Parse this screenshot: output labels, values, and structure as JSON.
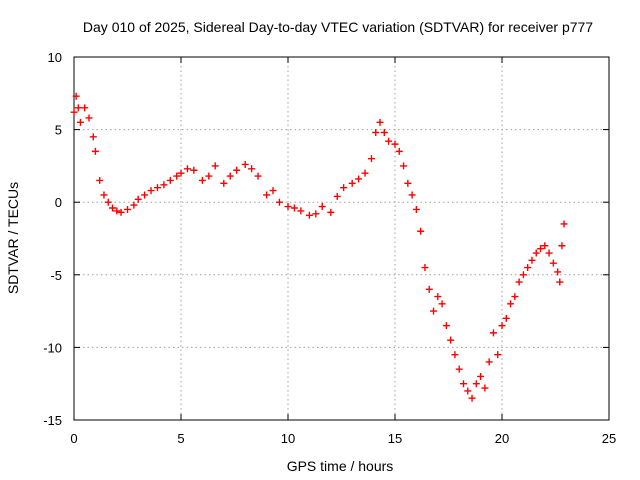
{
  "chart_data": {
    "type": "scatter",
    "title": "Day 010 of 2025, Sidereal Day-to-day VTEC variation (SDTVAR) for receiver p777",
    "xlabel": "GPS time / hours",
    "ylabel": "SDTVAR / TECUs",
    "xlim": [
      0,
      25
    ],
    "ylim": [
      -15,
      10
    ],
    "xticks": [
      0,
      5,
      10,
      15,
      20,
      25
    ],
    "yticks": [
      -15,
      -10,
      -5,
      0,
      5,
      10
    ],
    "xtick_labels": [
      "0",
      "5",
      "10",
      "15",
      "20",
      "25"
    ],
    "ytick_labels": [
      "-15",
      "-10",
      "-5",
      "0",
      "5",
      "10"
    ],
    "grid": true,
    "marker": "+",
    "series": [
      {
        "name": "SDTVAR",
        "color": "#ff0000",
        "x": [
          0.0,
          0.1,
          0.2,
          0.3,
          0.5,
          0.7,
          0.9,
          1.0,
          1.2,
          1.4,
          1.6,
          1.8,
          2.0,
          2.2,
          2.5,
          2.8,
          3.0,
          3.3,
          3.6,
          3.9,
          4.2,
          4.5,
          4.8,
          5.0,
          5.3,
          5.6,
          6.0,
          6.3,
          6.6,
          7.0,
          7.3,
          7.6,
          8.0,
          8.3,
          8.6,
          9.0,
          9.3,
          9.6,
          10.0,
          10.3,
          10.6,
          11.0,
          11.3,
          11.6,
          12.0,
          12.3,
          12.6,
          13.0,
          13.3,
          13.6,
          13.9,
          14.1,
          14.3,
          14.5,
          14.7,
          15.0,
          15.2,
          15.4,
          15.6,
          15.8,
          16.0,
          16.2,
          16.4,
          16.6,
          16.8,
          17.0,
          17.2,
          17.4,
          17.6,
          17.8,
          18.0,
          18.2,
          18.4,
          18.6,
          18.8,
          19.0,
          19.2,
          19.4,
          19.6,
          19.8,
          20.0,
          20.2,
          20.4,
          20.6,
          20.8,
          21.0,
          21.2,
          21.4,
          21.6,
          21.8,
          22.0,
          22.2,
          22.4,
          22.6,
          22.7,
          22.8,
          22.9
        ],
        "y": [
          6.2,
          7.3,
          6.5,
          5.5,
          6.5,
          5.8,
          4.5,
          3.5,
          1.5,
          0.5,
          0.0,
          -0.4,
          -0.6,
          -0.7,
          -0.5,
          -0.2,
          0.2,
          0.5,
          0.8,
          1.0,
          1.2,
          1.5,
          1.8,
          2.0,
          2.3,
          2.2,
          1.5,
          1.8,
          2.5,
          1.3,
          1.8,
          2.2,
          2.6,
          2.3,
          1.8,
          0.5,
          0.8,
          0.0,
          -0.3,
          -0.4,
          -0.6,
          -0.9,
          -0.8,
          -0.3,
          -0.7,
          0.4,
          1.0,
          1.3,
          1.6,
          2.0,
          3.0,
          4.8,
          5.5,
          4.8,
          4.2,
          4.0,
          3.5,
          2.5,
          1.3,
          0.5,
          -0.5,
          -2.0,
          -4.5,
          -6.0,
          -7.5,
          -6.5,
          -7.0,
          -8.5,
          -9.5,
          -10.5,
          -11.5,
          -12.5,
          -13.0,
          -13.5,
          -12.5,
          -12.0,
          -12.8,
          -11.0,
          -9.0,
          -10.5,
          -8.5,
          -8.0,
          -7.0,
          -6.5,
          -5.5,
          -5.0,
          -4.5,
          -4.0,
          -3.5,
          -3.2,
          -3.0,
          -3.5,
          -4.2,
          -4.8,
          -5.5,
          -3.0,
          -1.5
        ]
      }
    ]
  }
}
